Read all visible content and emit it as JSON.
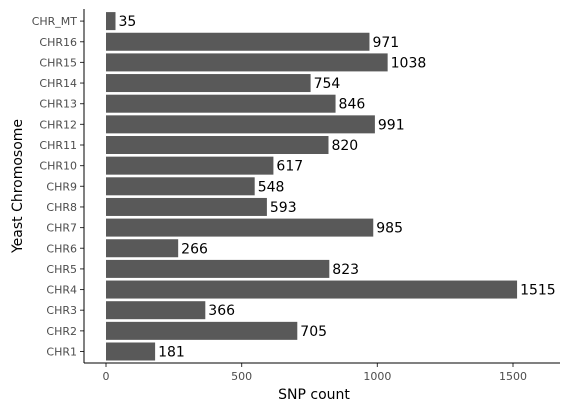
{
  "chart_data": {
    "type": "bar",
    "orientation": "horizontal",
    "categories": [
      "CHR1",
      "CHR2",
      "CHR3",
      "CHR4",
      "CHR5",
      "CHR6",
      "CHR7",
      "CHR8",
      "CHR9",
      "CHR10",
      "CHR11",
      "CHR12",
      "CHR13",
      "CHR14",
      "CHR15",
      "CHR16",
      "CHR_MT"
    ],
    "values": [
      181,
      705,
      366,
      1515,
      823,
      266,
      985,
      593,
      548,
      617,
      820,
      991,
      846,
      754,
      1038,
      971,
      35
    ],
    "xlabel": "SNP count",
    "ylabel": "Yeast Chromosome",
    "xlim": [
      0,
      1515
    ],
    "xticks": [
      0,
      500,
      1000,
      1500
    ],
    "bar_color": "#595959",
    "grid": false,
    "data_labels": true
  }
}
